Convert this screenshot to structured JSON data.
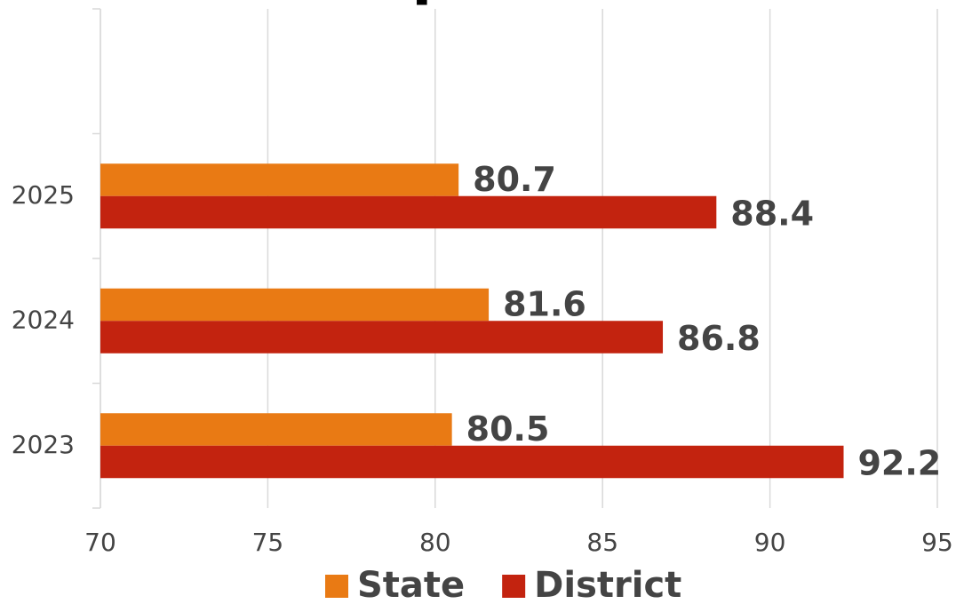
{
  "chart_data": {
    "type": "bar",
    "orientation": "horizontal",
    "title": "State Comparison",
    "categories": [
      "2023",
      "2024",
      "2025",
      null
    ],
    "series": [
      {
        "name": "State",
        "color": "#e97a14",
        "values": [
          80.5,
          81.6,
          80.7,
          null
        ]
      },
      {
        "name": "District",
        "color": "#c3230f",
        "values": [
          92.2,
          86.8,
          88.4,
          null
        ]
      }
    ],
    "xlim": [
      70,
      95
    ],
    "xticks": [
      70,
      75,
      80,
      85,
      90,
      95
    ],
    "grid": true,
    "legend": "bottom"
  }
}
